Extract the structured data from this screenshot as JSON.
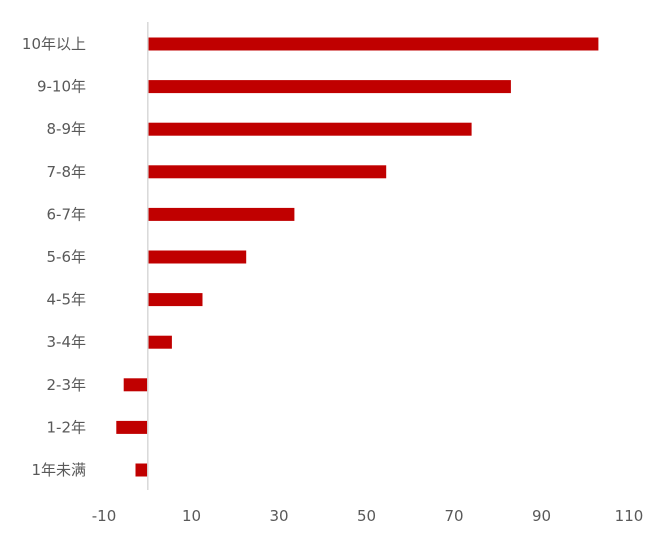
{
  "chart_data": {
    "type": "bar",
    "orientation": "horizontal",
    "categories": [
      "10年以上",
      "9-10年",
      "8-9年",
      "7-8年",
      "6-7年",
      "5-6年",
      "4-5年",
      "3-4年",
      "2-3年",
      "1-2年",
      "1年未满"
    ],
    "values": [
      103,
      83,
      74,
      54.5,
      33.5,
      22.5,
      12.5,
      5.5,
      -5.5,
      -7.2,
      -2.8
    ],
    "xlim": [
      -10,
      110
    ],
    "xticks": [
      "-10",
      "10",
      "30",
      "50",
      "70",
      "90",
      "110"
    ],
    "xtick_values": [
      -10,
      10,
      30,
      50,
      70,
      90,
      110
    ],
    "colors": {
      "bar": "#C00000",
      "axis": "#D9D9D9",
      "text": "#595959"
    },
    "grid": false,
    "legend": "none"
  }
}
